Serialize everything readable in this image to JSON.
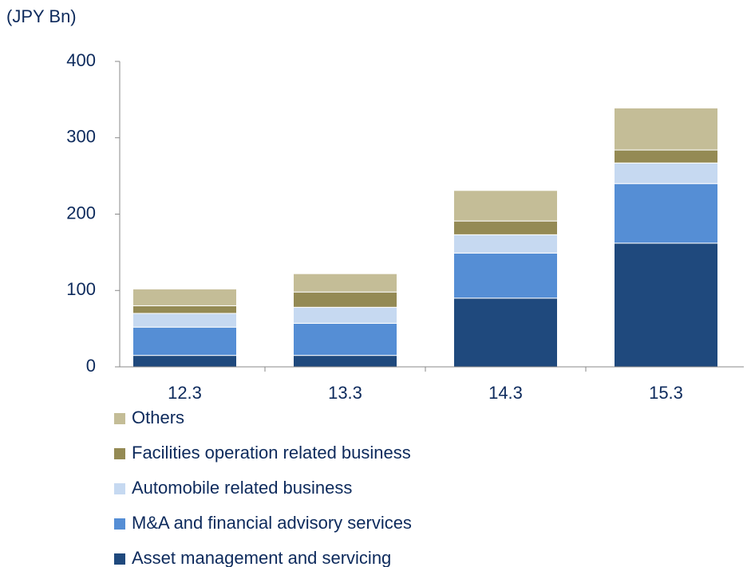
{
  "chart_data": {
    "type": "stacked_bar",
    "y_label": "(JPY Bn)",
    "categories": [
      "12.3",
      "13.3",
      "14.3",
      "15.3"
    ],
    "series": [
      {
        "name": "Asset management and servicing",
        "color": "#1f497d",
        "values": [
          15,
          15,
          90,
          162
        ]
      },
      {
        "name": "M&A and financial advisory services",
        "color": "#558ed5",
        "values": [
          37,
          42,
          59,
          78
        ]
      },
      {
        "name": "Automobile related business",
        "color": "#c6d9f1",
        "values": [
          18,
          21,
          24,
          27
        ]
      },
      {
        "name": "Facilities operation related business",
        "color": "#948a54",
        "values": [
          10,
          20,
          18,
          17
        ]
      },
      {
        "name": "Others",
        "color": "#c4bd97",
        "values": [
          22,
          24,
          40,
          55
        ]
      }
    ],
    "ylim": [
      0,
      400
    ],
    "yticks": [
      0,
      100,
      200,
      300,
      400
    ]
  }
}
